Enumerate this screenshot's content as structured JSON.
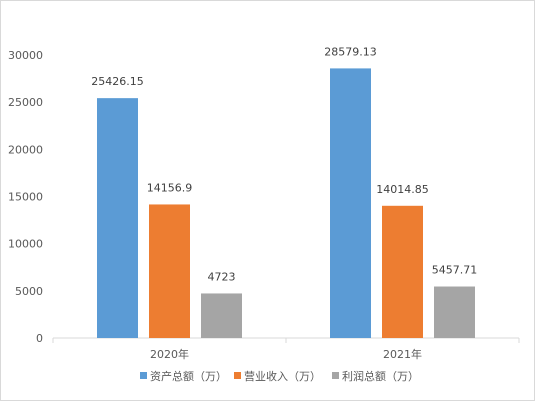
{
  "chart_data": {
    "type": "bar",
    "categories": [
      "2020年",
      "2021年"
    ],
    "series": [
      {
        "name": "资产总额（万）",
        "values": [
          25426.15,
          28579.13
        ],
        "labels": [
          "25426.15",
          "28579.13"
        ],
        "color": "#5b9bd5"
      },
      {
        "name": "营业收入（万）",
        "values": [
          14156.9,
          14014.85
        ],
        "labels": [
          "14156.9",
          "14014.85"
        ],
        "color": "#ed7d31"
      },
      {
        "name": "利润总额（万）",
        "values": [
          4723,
          5457.71
        ],
        "labels": [
          "4723",
          "5457.71"
        ],
        "color": "#a5a5a5"
      }
    ],
    "ylim": [
      0,
      30000
    ],
    "yticks": [
      "0",
      "5000",
      "10000",
      "15000",
      "20000",
      "25000",
      "30000"
    ],
    "ytick_values": [
      0,
      5000,
      10000,
      15000,
      20000,
      25000,
      30000
    ],
    "grid": false,
    "legend_position": "bottom"
  }
}
